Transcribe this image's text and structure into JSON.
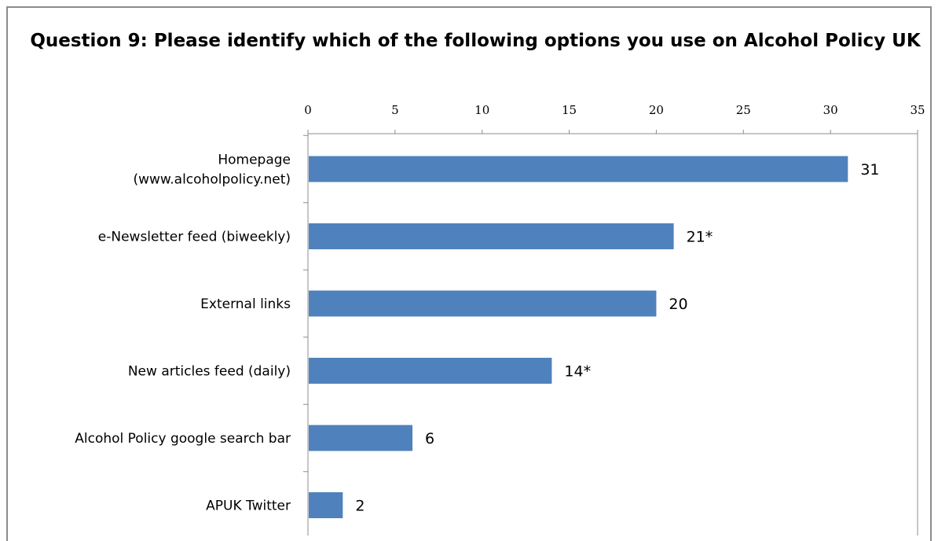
{
  "chart_data": {
    "type": "bar",
    "orientation": "horizontal",
    "title": "Question 9: Please identify which of the following options you use on Alcohol Policy UK",
    "categories": [
      [
        "Homepage",
        "(www.alcoholpolicy.net)"
      ],
      [
        "e-Newsletter feed (biweekly)"
      ],
      [
        "External links"
      ],
      [
        "New articles feed (daily)"
      ],
      [
        "Alcohol Policy google search bar"
      ],
      [
        "APUK Twitter"
      ]
    ],
    "values": [
      31,
      21,
      20,
      14,
      6,
      2
    ],
    "data_labels": [
      "31",
      "21*",
      "20",
      "14*",
      "6",
      "2"
    ],
    "xlim": [
      0,
      35
    ],
    "x_ticks": [
      0,
      5,
      10,
      15,
      20,
      25,
      30,
      35
    ],
    "x_axis_position": "top",
    "bar_color": "#4f81bd",
    "grid": false
  }
}
